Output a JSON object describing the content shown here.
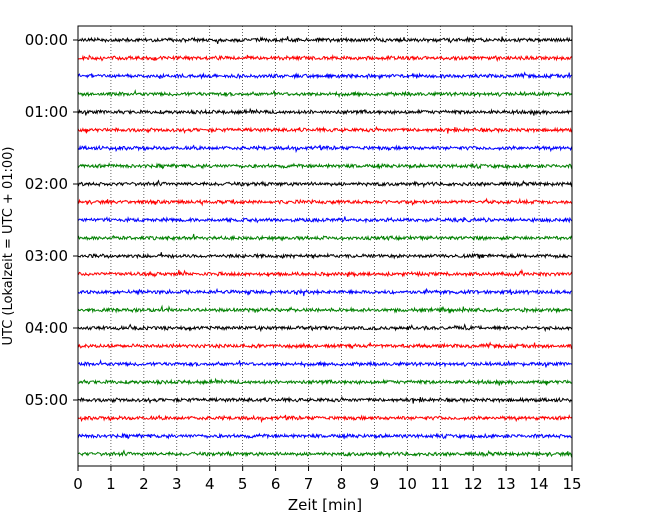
{
  "chart_data": {
    "type": "line",
    "title": "",
    "xlabel": "Zeit  [min]",
    "ylabel": "UTC (Lokalzeit = UTC + 01:00)",
    "xlim": [
      0,
      15
    ],
    "x_ticks": [
      "0",
      "1",
      "2",
      "3",
      "4",
      "5",
      "6",
      "7",
      "8",
      "9",
      "10",
      "11",
      "12",
      "13",
      "14",
      "15"
    ],
    "y_tick_labels": [
      "00:00",
      "01:00",
      "02:00",
      "03:00",
      "04:00",
      "05:00"
    ],
    "grid": "vertical dotted lines at each minute",
    "legend": "none",
    "trace_interval_minutes": 15,
    "trace_count": 24,
    "trace_start_times": [
      "00:00",
      "00:15",
      "00:30",
      "00:45",
      "01:00",
      "01:15",
      "01:30",
      "01:45",
      "02:00",
      "02:15",
      "02:30",
      "02:45",
      "03:00",
      "03:15",
      "03:30",
      "03:45",
      "04:00",
      "04:15",
      "04:30",
      "04:45",
      "05:00",
      "05:15",
      "05:30",
      "05:45"
    ],
    "trace_colors_cycle": [
      "#000000",
      "#ff0000",
      "#0000ff",
      "#008000"
    ],
    "waveform": "seismogram-style noise traces, one row per 15-minute window"
  }
}
